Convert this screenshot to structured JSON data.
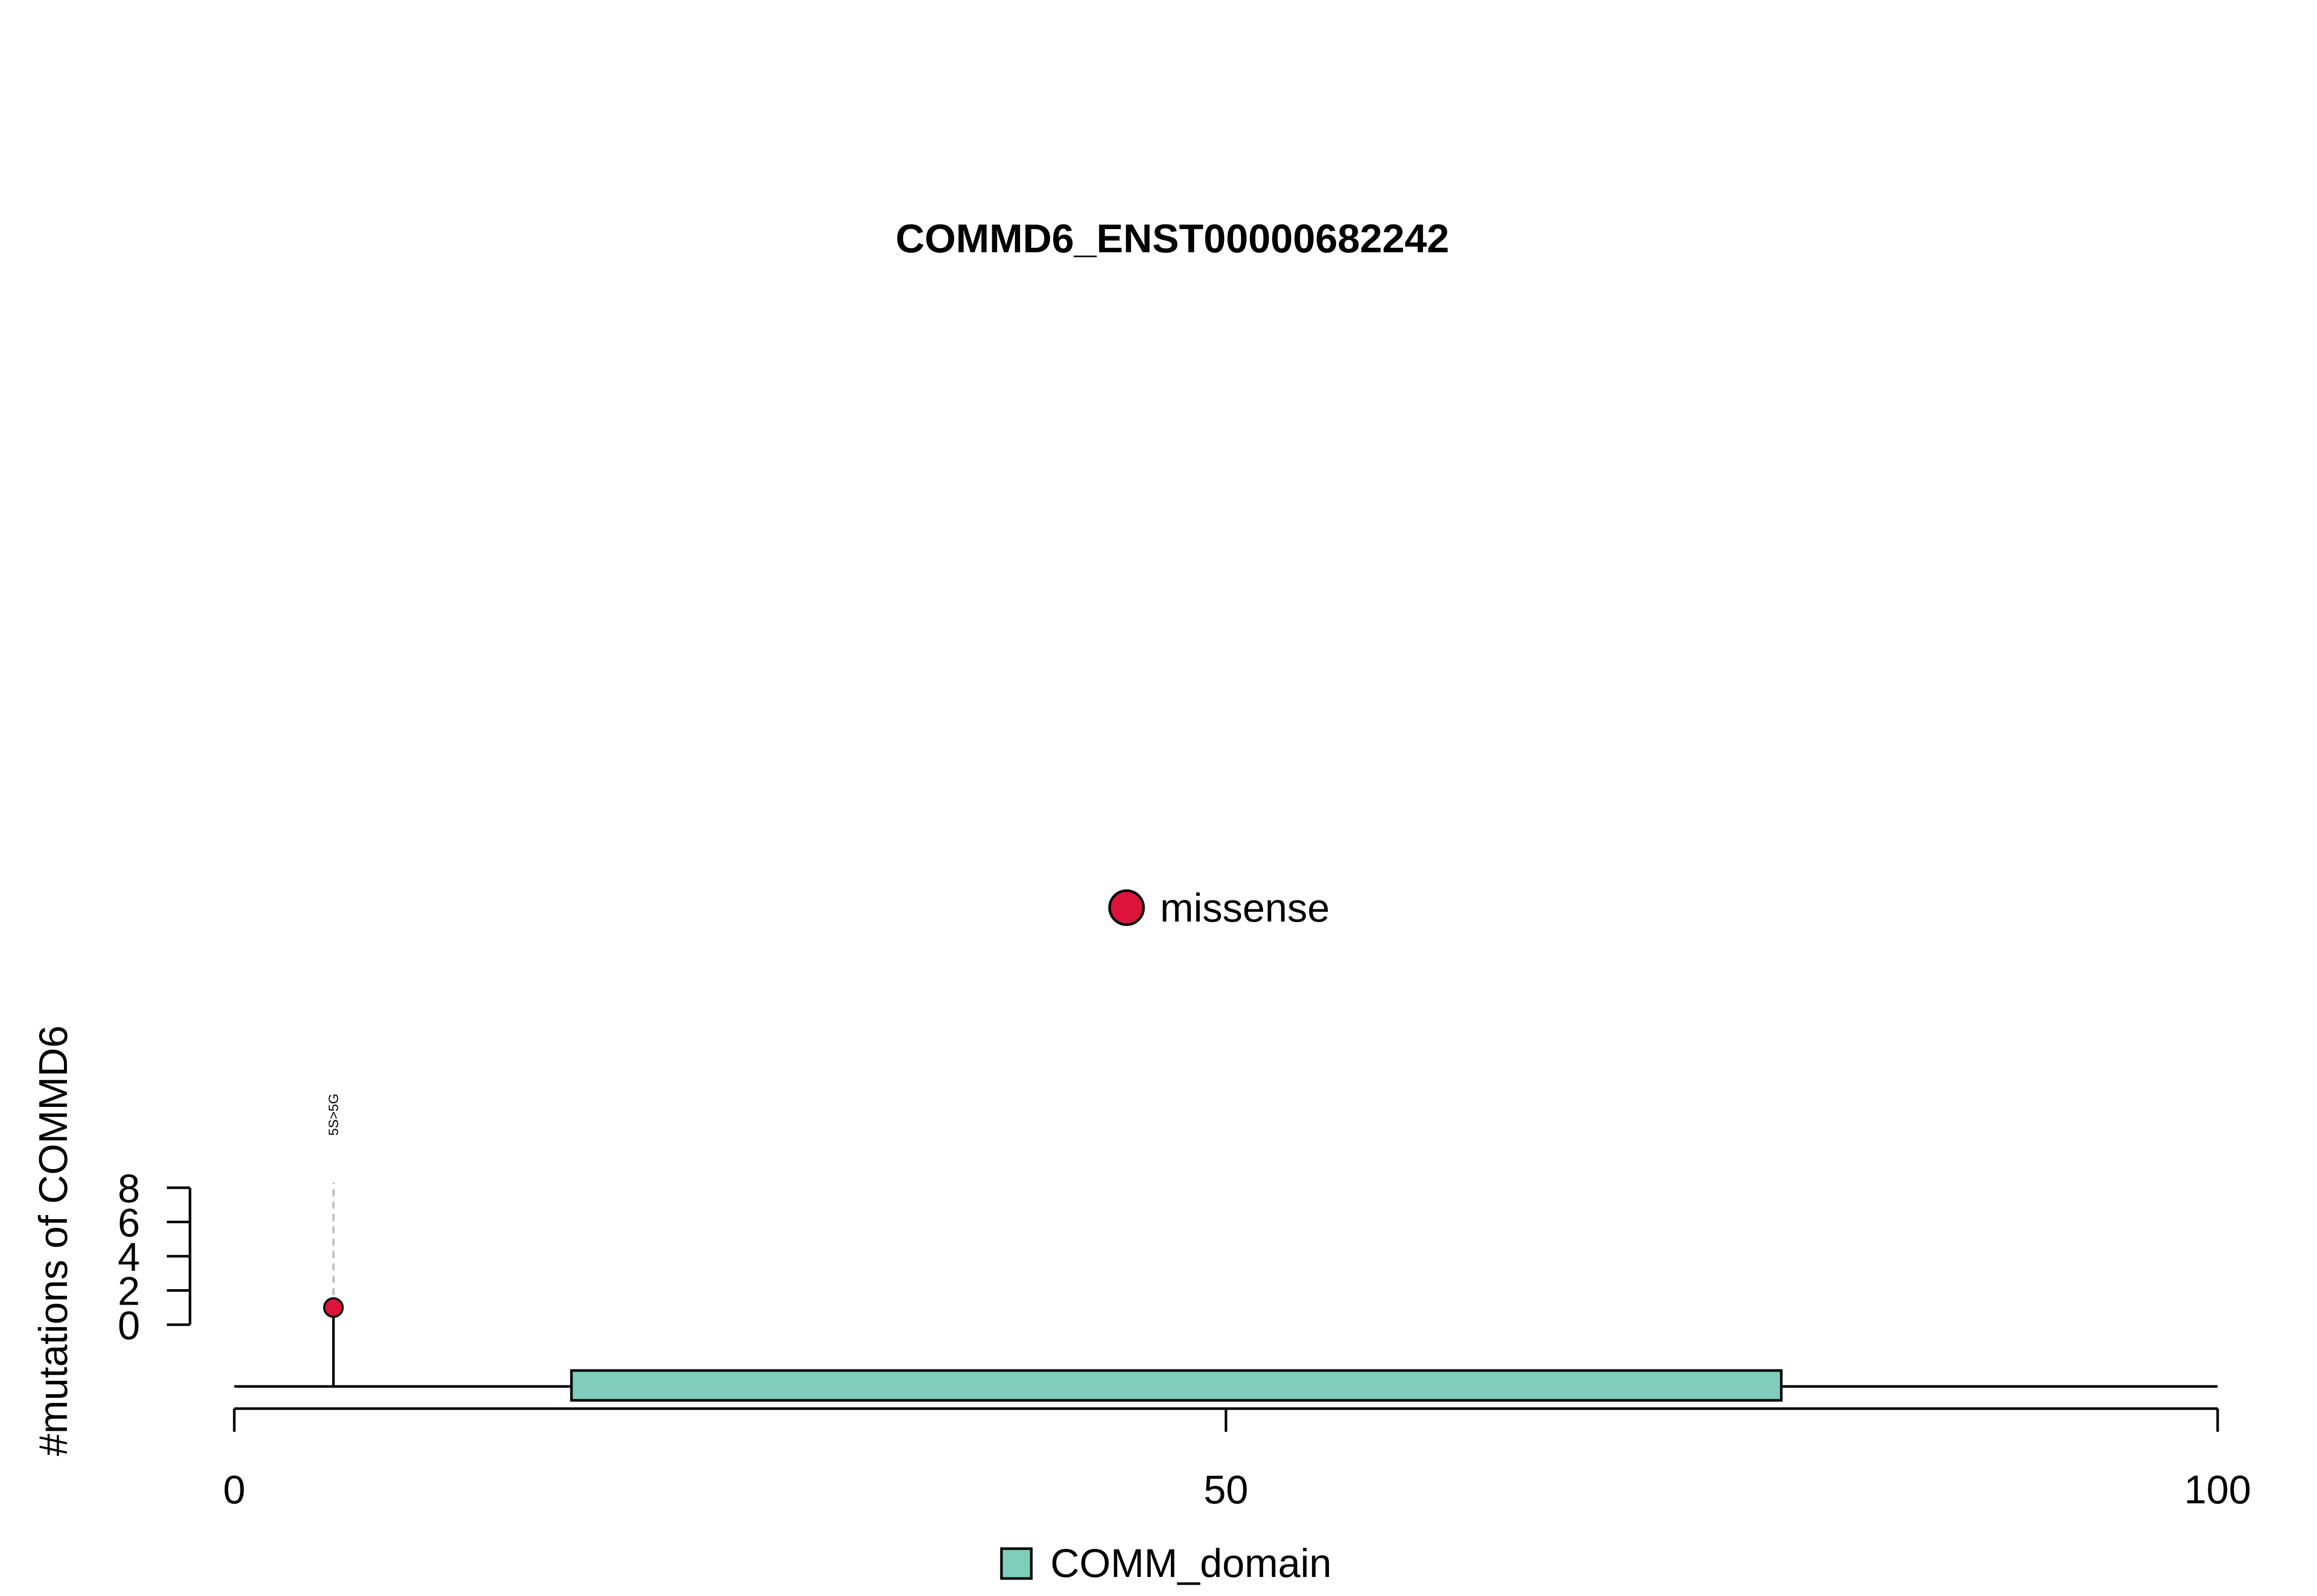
{
  "chart_data": {
    "type": "lollipop",
    "title": "COMMD6_ENST00000682242",
    "ylabel": "#mutations of COMMD6",
    "xlim": [
      0,
      100
    ],
    "x_ticks": [
      0,
      50,
      100
    ],
    "ylim": [
      0,
      8
    ],
    "y_ticks": [
      0,
      2,
      4,
      6,
      8
    ],
    "mutations": [
      {
        "position": 5,
        "count": 1,
        "label": "5S>5G",
        "type": "missense"
      }
    ],
    "domains": [
      {
        "name": "COMM_domain",
        "start": 17,
        "end": 78,
        "color": "#7fcdbb"
      }
    ],
    "legend_top": [
      {
        "label": "missense",
        "color": "#dc143c"
      }
    ],
    "legend_bottom": [
      {
        "label": "COMM_domain",
        "color": "#7fcdbb"
      }
    ]
  }
}
